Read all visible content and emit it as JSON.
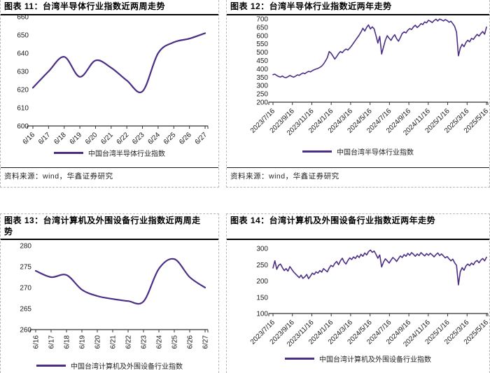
{
  "accent_color": "#4b2e85",
  "chart_data": [
    {
      "id": "c11",
      "type": "line",
      "title": "图表 11：台湾半导体行业指数近两周走势",
      "x": [
        "6/16",
        "6/17",
        "6/18",
        "6/19",
        "6/20",
        "6/21",
        "6/22",
        "6/23",
        "6/24",
        "6/25",
        "6/26",
        "6/27"
      ],
      "series": [
        {
          "name": "中国台湾半导体行业指数",
          "values": [
            621,
            630,
            638,
            627,
            636,
            632,
            625,
            619,
            640,
            646,
            648,
            651
          ]
        }
      ],
      "ylim": [
        600,
        660
      ],
      "y_ticks": [
        600,
        610,
        620,
        630,
        640,
        650,
        660
      ],
      "xlabel": "",
      "ylabel": "",
      "grid": false,
      "legend_position": "bottom",
      "line_color": "#4b2e85",
      "source": "资料来源：wind，华鑫证券研究"
    },
    {
      "id": "c12",
      "type": "line",
      "title": "图表 12：台湾半导体行业指数近两年走势",
      "x": [
        "2023/7/16",
        "2023/9/16",
        "2023/11/16",
        "2024/1/16",
        "2024/3/16",
        "2024/5/16",
        "2024/7/16",
        "2024/9/16",
        "2024/11/16",
        "2025/1/16",
        "2025/3/16",
        "2025/5/16"
      ],
      "series": [
        {
          "name": "中国台湾半导体行业指数",
          "values": [
            365,
            368,
            360,
            354,
            351,
            357,
            349,
            347,
            353,
            360,
            355,
            350,
            356,
            364,
            361,
            369,
            375,
            371,
            379,
            385,
            382,
            389,
            395,
            399,
            403,
            409,
            417,
            429,
            447,
            467,
            504,
            494,
            477,
            459,
            474,
            491,
            504,
            497,
            511,
            519,
            513,
            525,
            539,
            555,
            571,
            587,
            603,
            621,
            644,
            627,
            649,
            664,
            640,
            652,
            640,
            600,
            555,
            595,
            489,
            532,
            572,
            599,
            584,
            571,
            591,
            605,
            581,
            566,
            588,
            612,
            622,
            616,
            632,
            642,
            636,
            652,
            662,
            648,
            658,
            672,
            666,
            682,
            676,
            692,
            686,
            678,
            690,
            698,
            688,
            699,
            694,
            688,
            696,
            690,
            680,
            686,
            672,
            655,
            620,
            478,
            524,
            548,
            533,
            558,
            572,
            562,
            583,
            577,
            593,
            607,
            597,
            612,
            624,
            608,
            651
          ]
        }
      ],
      "ylim": [
        200,
        700
      ],
      "y_ticks": [
        200,
        250,
        300,
        350,
        400,
        450,
        500,
        550,
        600,
        650,
        700
      ],
      "xlabel": "",
      "ylabel": "",
      "grid": false,
      "legend_position": "bottom",
      "line_color": "#4b2e85",
      "source": "资料来源：wind，华鑫证券研究"
    },
    {
      "id": "c13",
      "type": "line",
      "title": "图表 13：台湾计算机及外围设备行业指数近两周走势",
      "x": [
        "6/16",
        "6/17",
        "6/18",
        "6/19",
        "6/20",
        "6/21",
        "6/22",
        "6/23",
        "6/24",
        "6/25",
        "6/26",
        "6/27"
      ],
      "series": [
        {
          "name": "中国台湾计算机及外围设备行业指数",
          "values": [
            274,
            272.5,
            273,
            269.5,
            268,
            267.3,
            266.8,
            266.7,
            274.5,
            276.8,
            272.5,
            270
          ]
        }
      ],
      "ylim": [
        260,
        280
      ],
      "y_ticks": [
        260,
        265,
        270,
        275,
        280
      ],
      "xlabel": "",
      "ylabel": "",
      "grid": false,
      "legend_position": "bottom",
      "line_color": "#4b2e85"
    },
    {
      "id": "c14",
      "type": "line",
      "title": "图表 14：台湾计算机及外围设备行业指数近两年走势",
      "x": [
        "2023/7/16",
        "2023/9/16",
        "2023/11/16",
        "2024/1/16",
        "2024/3/16",
        "2024/5/16",
        "2024/7/16",
        "2024/9/16",
        "2024/11/16",
        "2025/1/16",
        "2025/3/16",
        "2025/5/16"
      ],
      "series": [
        {
          "name": "中国台湾计算机及外围设备行业指数",
          "values": [
            240,
            262,
            236,
            248,
            252,
            241,
            232,
            238,
            230,
            244,
            236,
            228,
            222,
            216,
            210,
            218,
            208,
            213,
            220,
            207,
            215,
            224,
            220,
            228,
            224,
            232,
            227,
            238,
            233,
            228,
            240,
            248,
            244,
            254,
            260,
            250,
            262,
            270,
            258,
            252,
            263,
            271,
            266,
            274,
            269,
            278,
            272,
            282,
            276,
            286,
            280,
            290,
            295,
            288,
            292,
            282,
            270,
            280,
            243,
            258,
            268,
            262,
            255,
            264,
            272,
            267,
            260,
            269,
            277,
            272,
            281,
            276,
            285,
            279,
            287,
            282,
            276,
            283,
            278,
            287,
            282,
            277,
            284,
            279,
            285,
            280,
            274,
            281,
            286,
            278,
            283,
            277,
            271,
            275,
            268,
            262,
            267,
            256,
            248,
            188,
            228,
            241,
            233,
            246,
            252,
            247,
            255,
            250,
            259,
            263,
            256,
            264,
            269,
            262,
            273
          ]
        }
      ],
      "ylim": [
        100,
        300
      ],
      "y_ticks": [
        100,
        150,
        200,
        250,
        300
      ],
      "xlabel": "",
      "ylabel": "",
      "grid": false,
      "legend_position": "bottom",
      "line_color": "#4b2e85"
    }
  ]
}
